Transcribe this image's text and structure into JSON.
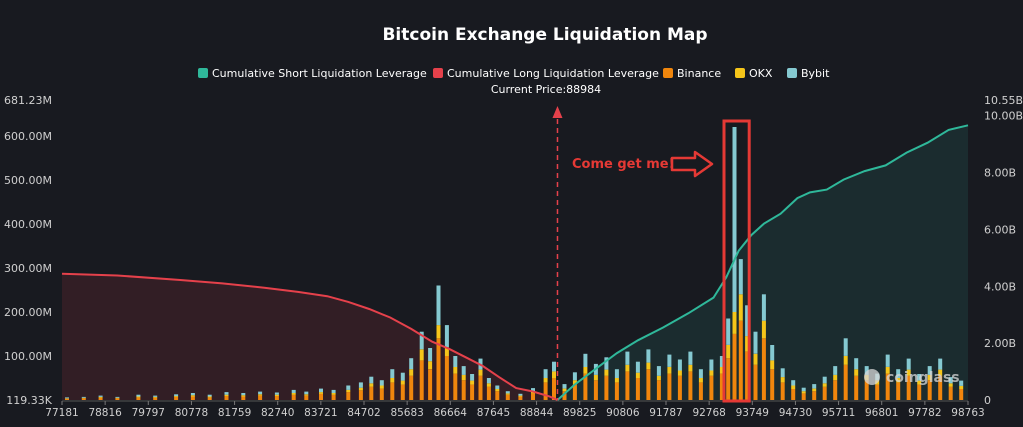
{
  "chart_data": {
    "type": "bar",
    "title": "Bitcoin Exchange Liquidation Map",
    "current_price_label": "Current Price:88984",
    "annotation": "Come get me!",
    "watermark": "coinglass",
    "legend": [
      {
        "name": "Cumulative Short Liquidation Leverage",
        "color": "#2fb89a"
      },
      {
        "name": "Cumulative Long Liquidation Leverage",
        "color": "#e5414b"
      },
      {
        "name": "Binance",
        "color": "#f0860d"
      },
      {
        "name": "OKX",
        "color": "#f5c51a"
      },
      {
        "name": "Bybit",
        "color": "#85c9d1"
      }
    ],
    "left_axis": {
      "ticks": [
        "681.23M",
        "600.00M",
        "500.00M",
        "400.00M",
        "300.00M",
        "200.00M",
        "100.00M",
        "119.33K"
      ],
      "values": [
        681.23,
        600,
        500,
        400,
        300,
        200,
        100,
        0.119
      ],
      "unit": "M"
    },
    "right_axis": {
      "ticks": [
        "10.55B",
        "10.00B",
        "8.00B",
        "6.00B",
        "4.00B",
        "2.00B",
        "0"
      ],
      "values": [
        10.55,
        10,
        8,
        6,
        4,
        2,
        0
      ],
      "unit": "B"
    },
    "x_axis": {
      "ticks": [
        "77181",
        "78816",
        "79797",
        "80778",
        "81759",
        "82740",
        "83721",
        "84702",
        "85683",
        "86664",
        "87645",
        "88844",
        "89825",
        "90806",
        "91787",
        "92768",
        "93749",
        "94730",
        "95711",
        "96801",
        "97782",
        "98763"
      ],
      "min": 77181,
      "max": 98763
    },
    "current_price": 88984,
    "highlight_range": [
      92950,
      93550
    ],
    "colors": {
      "background": "#181a20",
      "binance": "#f0860d",
      "okx": "#f5c51a",
      "bybit": "#85c9d1",
      "short_line": "#2fb89a",
      "long_line": "#e5414b",
      "highlight": "#e53935"
    },
    "long_cumulative": {
      "x": [
        77181,
        78500,
        80000,
        81000,
        82000,
        82800,
        83500,
        84000,
        84500,
        85000,
        85500,
        86000,
        86400,
        86800,
        87200,
        87600,
        88000,
        88400,
        88800,
        88984
      ],
      "y": [
        4.44,
        4.38,
        4.22,
        4.1,
        3.95,
        3.8,
        3.65,
        3.45,
        3.2,
        2.9,
        2.5,
        2.05,
        1.8,
        1.5,
        1.2,
        0.8,
        0.42,
        0.3,
        0.12,
        0
      ]
    },
    "short_cumulative": {
      "x": [
        88984,
        89400,
        89900,
        90400,
        90900,
        91500,
        92100,
        92700,
        93000,
        93300,
        93600,
        93900,
        94300,
        94700,
        95000,
        95400,
        95800,
        96300,
        96800,
        97300,
        97800,
        98300,
        98763
      ],
      "y": [
        0,
        0.55,
        1.1,
        1.65,
        2.1,
        2.55,
        3.05,
        3.6,
        4.3,
        5.25,
        5.8,
        6.2,
        6.55,
        7.1,
        7.3,
        7.4,
        7.75,
        8.05,
        8.25,
        8.7,
        9.05,
        9.5,
        9.66
      ]
    },
    "bars": [
      {
        "x": 77300,
        "binance": 3,
        "okx": 1,
        "bybit": 2
      },
      {
        "x": 77700,
        "binance": 4,
        "okx": 1,
        "bybit": 2
      },
      {
        "x": 78100,
        "binance": 5,
        "okx": 2,
        "bybit": 3
      },
      {
        "x": 78500,
        "binance": 4,
        "okx": 1,
        "bybit": 2
      },
      {
        "x": 79000,
        "binance": 6,
        "okx": 2,
        "bybit": 4
      },
      {
        "x": 79400,
        "binance": 5,
        "okx": 2,
        "bybit": 3
      },
      {
        "x": 79900,
        "binance": 7,
        "okx": 2,
        "bybit": 4
      },
      {
        "x": 80300,
        "binance": 8,
        "okx": 3,
        "bybit": 5
      },
      {
        "x": 80700,
        "binance": 6,
        "okx": 2,
        "bybit": 4
      },
      {
        "x": 81100,
        "binance": 9,
        "okx": 3,
        "bybit": 6
      },
      {
        "x": 81500,
        "binance": 8,
        "okx": 3,
        "bybit": 5
      },
      {
        "x": 81900,
        "binance": 10,
        "okx": 3,
        "bybit": 6
      },
      {
        "x": 82300,
        "binance": 9,
        "okx": 3,
        "bybit": 5
      },
      {
        "x": 82700,
        "binance": 12,
        "okx": 4,
        "bybit": 7
      },
      {
        "x": 83000,
        "binance": 10,
        "okx": 3,
        "bybit": 6
      },
      {
        "x": 83350,
        "binance": 14,
        "okx": 4,
        "bybit": 8
      },
      {
        "x": 83650,
        "binance": 12,
        "okx": 4,
        "bybit": 7
      },
      {
        "x": 84000,
        "binance": 18,
        "okx": 5,
        "bybit": 10
      },
      {
        "x": 84300,
        "binance": 22,
        "okx": 6,
        "bybit": 12
      },
      {
        "x": 84550,
        "binance": 30,
        "okx": 8,
        "bybit": 15
      },
      {
        "x": 84800,
        "binance": 26,
        "okx": 7,
        "bybit": 12
      },
      {
        "x": 85050,
        "binance": 40,
        "okx": 10,
        "bybit": 20
      },
      {
        "x": 85300,
        "binance": 35,
        "okx": 9,
        "bybit": 18
      },
      {
        "x": 85500,
        "binance": 55,
        "okx": 15,
        "bybit": 25
      },
      {
        "x": 85750,
        "binance": 90,
        "okx": 25,
        "bybit": 40
      },
      {
        "x": 85950,
        "binance": 70,
        "okx": 18,
        "bybit": 30
      },
      {
        "x": 86150,
        "binance": 140,
        "okx": 30,
        "bybit": 90
      },
      {
        "x": 86350,
        "binance": 100,
        "okx": 20,
        "bybit": 50
      },
      {
        "x": 86550,
        "binance": 60,
        "okx": 15,
        "bybit": 25
      },
      {
        "x": 86750,
        "binance": 45,
        "okx": 12,
        "bybit": 20
      },
      {
        "x": 86950,
        "binance": 35,
        "okx": 9,
        "bybit": 15
      },
      {
        "x": 87150,
        "binance": 55,
        "okx": 14,
        "bybit": 25
      },
      {
        "x": 87350,
        "binance": 30,
        "okx": 8,
        "bybit": 12
      },
      {
        "x": 87550,
        "binance": 20,
        "okx": 5,
        "bybit": 8
      },
      {
        "x": 87800,
        "binance": 12,
        "okx": 3,
        "bybit": 5
      },
      {
        "x": 88100,
        "binance": 8,
        "okx": 2,
        "bybit": 4
      },
      {
        "x": 88400,
        "binance": 15,
        "okx": 4,
        "bybit": 8
      },
      {
        "x": 88700,
        "binance": 40,
        "okx": 10,
        "bybit": 20
      },
      {
        "x": 88900,
        "binance": 50,
        "okx": 15,
        "bybit": 22
      },
      {
        "x": 89150,
        "binance": 20,
        "okx": 6,
        "bybit": 10
      },
      {
        "x": 89400,
        "binance": 35,
        "okx": 10,
        "bybit": 18
      },
      {
        "x": 89650,
        "binance": 60,
        "okx": 15,
        "bybit": 30
      },
      {
        "x": 89900,
        "binance": 45,
        "okx": 12,
        "bybit": 25
      },
      {
        "x": 90150,
        "binance": 55,
        "okx": 14,
        "bybit": 28
      },
      {
        "x": 90400,
        "binance": 40,
        "okx": 10,
        "bybit": 20
      },
      {
        "x": 90650,
        "binance": 65,
        "okx": 15,
        "bybit": 30
      },
      {
        "x": 90900,
        "binance": 50,
        "okx": 12,
        "bybit": 25
      },
      {
        "x": 91150,
        "binance": 70,
        "okx": 15,
        "bybit": 30
      },
      {
        "x": 91400,
        "binance": 45,
        "okx": 10,
        "bybit": 22
      },
      {
        "x": 91650,
        "binance": 60,
        "okx": 15,
        "bybit": 28
      },
      {
        "x": 91900,
        "binance": 55,
        "okx": 12,
        "bybit": 25
      },
      {
        "x": 92150,
        "binance": 65,
        "okx": 15,
        "bybit": 30
      },
      {
        "x": 92400,
        "binance": 40,
        "okx": 10,
        "bybit": 20
      },
      {
        "x": 92650,
        "binance": 55,
        "okx": 12,
        "bybit": 25
      },
      {
        "x": 92900,
        "binance": 60,
        "okx": 15,
        "bybit": 25
      },
      {
        "x": 93050,
        "binance": 95,
        "okx": 30,
        "bybit": 60
      },
      {
        "x": 93200,
        "binance": 150,
        "okx": 50,
        "bybit": 420
      },
      {
        "x": 93350,
        "binance": 180,
        "okx": 60,
        "bybit": 80
      },
      {
        "x": 93500,
        "binance": 110,
        "okx": 35,
        "bybit": 70
      },
      {
        "x": 93700,
        "binance": 80,
        "okx": 25,
        "bybit": 50
      },
      {
        "x": 93900,
        "binance": 140,
        "okx": 40,
        "bybit": 60
      },
      {
        "x": 94100,
        "binance": 70,
        "okx": 20,
        "bybit": 35
      },
      {
        "x": 94350,
        "binance": 40,
        "okx": 12,
        "bybit": 20
      },
      {
        "x": 94600,
        "binance": 25,
        "okx": 8,
        "bybit": 12
      },
      {
        "x": 94850,
        "binance": 15,
        "okx": 5,
        "bybit": 8
      },
      {
        "x": 95100,
        "binance": 20,
        "okx": 6,
        "bybit": 10
      },
      {
        "x": 95350,
        "binance": 30,
        "okx": 8,
        "bybit": 15
      },
      {
        "x": 95600,
        "binance": 45,
        "okx": 12,
        "bybit": 20
      },
      {
        "x": 95850,
        "binance": 80,
        "okx": 20,
        "bybit": 40
      },
      {
        "x": 96100,
        "binance": 55,
        "okx": 15,
        "bybit": 25
      },
      {
        "x": 96350,
        "binance": 45,
        "okx": 12,
        "bybit": 20
      },
      {
        "x": 96600,
        "binance": 35,
        "okx": 10,
        "bybit": 15
      },
      {
        "x": 96850,
        "binance": 60,
        "okx": 15,
        "bybit": 28
      },
      {
        "x": 97100,
        "binance": 40,
        "okx": 10,
        "bybit": 20
      },
      {
        "x": 97350,
        "binance": 55,
        "okx": 14,
        "bybit": 25
      },
      {
        "x": 97600,
        "binance": 35,
        "okx": 9,
        "bybit": 15
      },
      {
        "x": 97850,
        "binance": 45,
        "okx": 12,
        "bybit": 20
      },
      {
        "x": 98100,
        "binance": 55,
        "okx": 14,
        "bybit": 25
      },
      {
        "x": 98350,
        "binance": 30,
        "okx": 8,
        "bybit": 14
      },
      {
        "x": 98600,
        "binance": 25,
        "okx": 7,
        "bybit": 12
      }
    ]
  }
}
